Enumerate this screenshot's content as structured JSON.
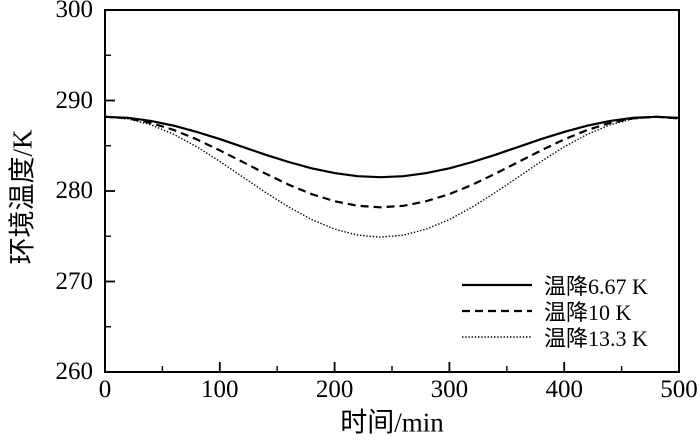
{
  "figure": {
    "background_color": "#ffffff",
    "axis_color": "#000000",
    "text_color": "#000000"
  },
  "chart_data": {
    "type": "line",
    "title": "",
    "xlabel": "时间/min",
    "ylabel": "环境温度/K",
    "xlim": [
      0,
      500
    ],
    "ylim": [
      260,
      300
    ],
    "x_major_ticks": [
      0,
      100,
      200,
      300,
      400,
      500
    ],
    "x_minor_ticks": [
      50,
      150,
      250,
      350,
      450
    ],
    "y_major_ticks": [
      260,
      270,
      280,
      290,
      300
    ],
    "y_minor_ticks": [
      265,
      275,
      285,
      295
    ],
    "grid": false,
    "legend_position": "inside-bottom-right",
    "x": [
      0,
      20,
      40,
      60,
      80,
      100,
      120,
      140,
      160,
      180,
      200,
      220,
      240,
      260,
      280,
      300,
      320,
      340,
      360,
      380,
      400,
      420,
      440,
      460,
      480,
      500
    ],
    "series": [
      {
        "name": "温降6.67 K",
        "style": "solid",
        "color": "#000000",
        "width": 2.2,
        "values": [
          288.2,
          288.09,
          287.75,
          287.22,
          286.53,
          285.73,
          284.87,
          284.0,
          283.2,
          282.51,
          281.98,
          281.64,
          281.53,
          281.64,
          281.98,
          282.51,
          283.2,
          284.0,
          284.87,
          285.73,
          286.53,
          287.22,
          287.75,
          288.09,
          288.2,
          288.09
        ]
      },
      {
        "name": "温降10 K",
        "style": "dashed",
        "color": "#000000",
        "width": 2.2,
        "values": [
          288.2,
          288.03,
          287.53,
          286.74,
          285.7,
          284.49,
          283.2,
          281.91,
          280.7,
          279.66,
          278.87,
          278.37,
          278.2,
          278.37,
          278.87,
          279.66,
          280.7,
          281.91,
          283.2,
          284.49,
          285.7,
          286.74,
          287.53,
          288.03,
          288.2,
          288.03
        ]
      },
      {
        "name": "温降13.3 K",
        "style": "dotted",
        "color": "#000000",
        "width": 1.4,
        "values": [
          288.2,
          287.97,
          287.31,
          286.25,
          284.88,
          283.27,
          281.55,
          279.83,
          278.23,
          276.85,
          275.79,
          275.13,
          274.9,
          275.13,
          275.79,
          276.85,
          278.23,
          279.83,
          281.55,
          283.27,
          284.88,
          286.25,
          287.31,
          287.97,
          288.2,
          287.97
        ]
      }
    ]
  }
}
